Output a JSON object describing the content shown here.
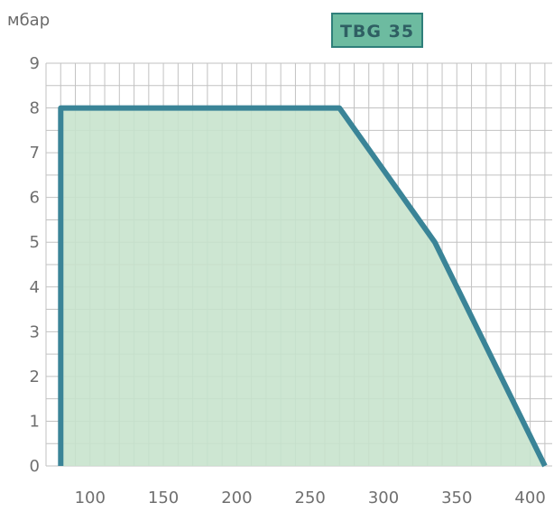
{
  "chart_data": {
    "type": "area",
    "title": "TBG 35",
    "ylabel": "мбар",
    "xlabel": "",
    "xlim": [
      70,
      415
    ],
    "ylim": [
      0,
      9
    ],
    "x_ticks": [
      100,
      150,
      200,
      250,
      300,
      350,
      400
    ],
    "y_ticks": [
      0,
      1,
      2,
      3,
      4,
      5,
      6,
      7,
      8,
      9
    ],
    "grid": true,
    "series": [
      {
        "points": [
          {
            "x": 80,
            "y": 0
          },
          {
            "x": 80,
            "y": 8
          },
          {
            "x": 270,
            "y": 8
          },
          {
            "x": 335,
            "y": 5
          },
          {
            "x": 410,
            "y": 0
          }
        ]
      }
    ],
    "colors": {
      "fill": "#c6e3cc",
      "line": "#3a8497",
      "grid": "#c2c2c2",
      "badge_bg": "#6dbba0",
      "badge_border": "#2f7f7a",
      "badge_text": "#2f5f63"
    }
  }
}
